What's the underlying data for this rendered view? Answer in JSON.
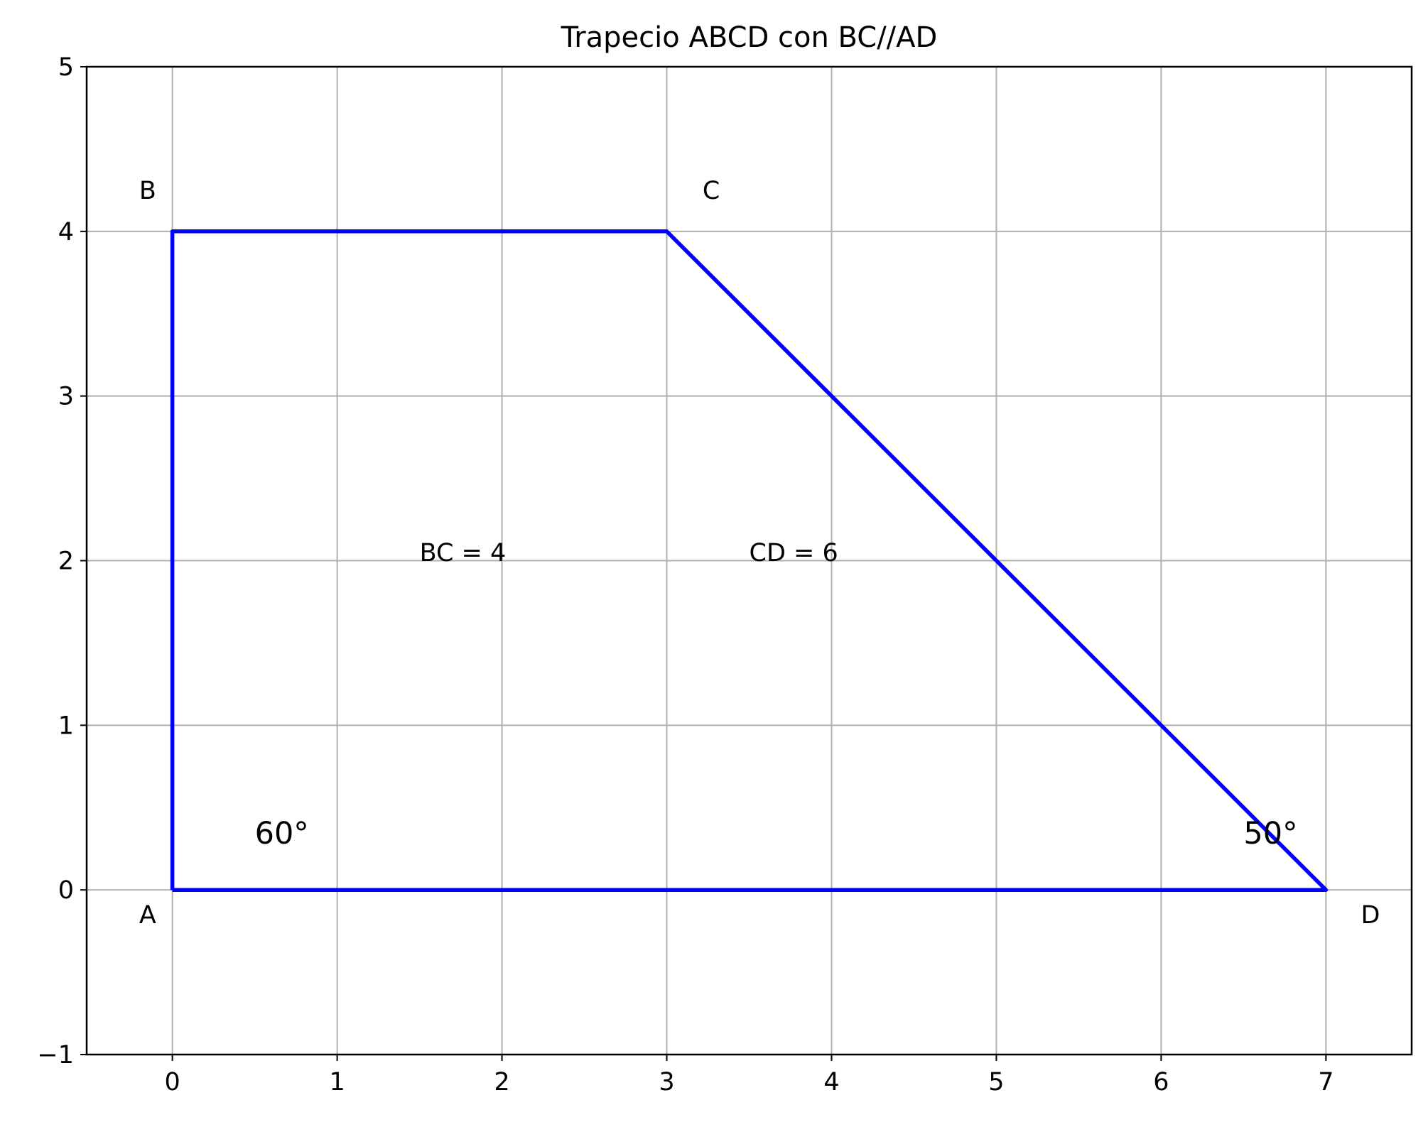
{
  "chart_data": {
    "type": "line",
    "title": "Trapecio ABCD con BC//AD",
    "xlabel": "",
    "ylabel": "",
    "xlim": [
      -0.52,
      7.52
    ],
    "ylim": [
      -1,
      5
    ],
    "x_ticks": [
      "0",
      "1",
      "2",
      "3",
      "4",
      "5",
      "6",
      "7"
    ],
    "y_ticks": [
      "−1",
      "0",
      "1",
      "2",
      "3",
      "4",
      "5"
    ],
    "x_tick_values": [
      0,
      1,
      2,
      3,
      4,
      5,
      6,
      7
    ],
    "y_tick_values": [
      -1,
      0,
      1,
      2,
      3,
      4,
      5
    ],
    "grid": true,
    "series": [
      {
        "color": "#0000ff",
        "x": [
          0,
          0,
          3,
          7,
          0
        ],
        "y": [
          0,
          4,
          4,
          0,
          0
        ]
      }
    ],
    "vertices": [
      {
        "label": "A",
        "x": -0.15,
        "y": -0.15
      },
      {
        "label": "B",
        "x": -0.15,
        "y": 4.25
      },
      {
        "label": "C",
        "x": 3.27,
        "y": 4.25
      },
      {
        "label": "D",
        "x": 7.27,
        "y": -0.15
      }
    ],
    "annotations": [
      {
        "text": "BC = 4",
        "x": 1.5,
        "y": 2.05,
        "size": "normal"
      },
      {
        "text": "CD = 6",
        "x": 3.5,
        "y": 2.05,
        "size": "normal"
      },
      {
        "text": "60$^\\circ$",
        "display": "60°",
        "x": 0.5,
        "y": 0.35,
        "size": "large"
      },
      {
        "text": "50$^\\circ$",
        "display": "50°",
        "x": 6.5,
        "y": 0.35,
        "size": "large"
      }
    ]
  }
}
